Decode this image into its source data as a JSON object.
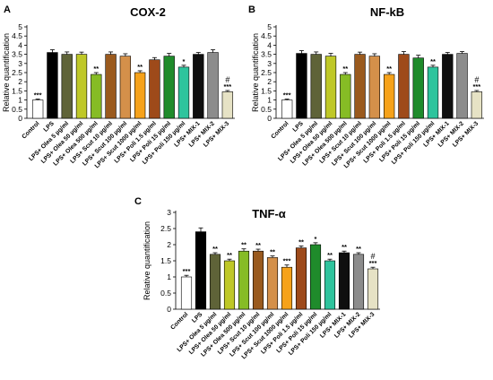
{
  "chart_data": [
    {
      "type": "bar",
      "panel": "A",
      "title": "COX-2",
      "ylabel": "Relative quantification",
      "ylim": [
        0,
        5
      ],
      "yticks": [
        "0",
        "0.5",
        "1",
        "1.5",
        "2",
        "2.5",
        "3",
        "3.5",
        "4",
        "4.5",
        "5"
      ],
      "categories": [
        "Control",
        "LPS",
        "LPS+ Olea 5 µg/ml",
        "LPS+ Olea 50 µg/ml",
        "LPS+ Olea 500 µg/ml",
        "LPS+ Scut 10 µg/ml",
        "LPS+ Scut 100 µg/ml",
        "LPS+ Scut 1000 µg/ml",
        "LPS+ Poli 1.5 µg/ml",
        "LPS+ Poli 15 µg/ml",
        "LPS+ Poli 150 µg/ml",
        "LPS+ MIX-1",
        "LPS+ MIX-2",
        "LPS+ MIX-3"
      ],
      "values": [
        1.0,
        3.6,
        3.5,
        3.5,
        2.4,
        3.5,
        3.4,
        2.5,
        3.2,
        3.4,
        2.8,
        3.5,
        3.6,
        1.45
      ],
      "errors": [
        0.05,
        0.15,
        0.13,
        0.12,
        0.1,
        0.13,
        0.13,
        0.1,
        0.12,
        0.15,
        0.1,
        0.1,
        0.15,
        0.07
      ],
      "annotations": [
        "***",
        "",
        "",
        "",
        "**",
        "",
        "",
        "**",
        "",
        "",
        "*",
        "",
        "",
        "***"
      ],
      "hash": [
        "",
        "",
        "",
        "",
        "",
        "",
        "",
        "",
        "",
        "",
        "",
        "",
        "",
        "#"
      ]
    },
    {
      "type": "bar",
      "panel": "B",
      "title": "NF-kB",
      "ylabel": "Relative quantification",
      "ylim": [
        0,
        5
      ],
      "yticks": [
        "0",
        "0.5",
        "1",
        "1.5",
        "2",
        "2.5",
        "3",
        "3.5",
        "4",
        "4.5",
        "5"
      ],
      "categories": [
        "Control",
        "LPS",
        "LPS+ Olea 5 µg/ml",
        "LPS+ Olea 50 µg/ml",
        "LPS+ Olea 500 µg/ml",
        "LPS+ Scut 10 µg/ml",
        "LPS+ Scut 100 µg/ml",
        "LPS+ Scut 1000 µg/ml",
        "LPS+ Poli 1.5 µg/ml",
        "LPS+ Poli 15 µg/ml",
        "LPS+ Poli 150 µg/ml",
        "LPS+ MIX-1",
        "LPS+ MIX-2",
        "LPS+ MIX-3"
      ],
      "values": [
        1.0,
        3.55,
        3.5,
        3.4,
        2.4,
        3.5,
        3.4,
        2.4,
        3.5,
        3.3,
        2.8,
        3.5,
        3.55,
        1.45
      ],
      "errors": [
        0.05,
        0.15,
        0.13,
        0.15,
        0.1,
        0.12,
        0.13,
        0.1,
        0.15,
        0.15,
        0.1,
        0.1,
        0.1,
        0.07
      ],
      "annotations": [
        "***",
        "",
        "",
        "",
        "**",
        "",
        "",
        "**",
        "",
        "",
        "**",
        "",
        "",
        "***"
      ],
      "hash": [
        "",
        "",
        "",
        "",
        "",
        "",
        "",
        "",
        "",
        "",
        "",
        "",
        "",
        "#"
      ]
    },
    {
      "type": "bar",
      "panel": "C",
      "title": "TNF-α",
      "ylabel": "Relative quantification",
      "ylim": [
        0,
        3
      ],
      "yticks": [
        "0",
        "0.5",
        "1",
        "1.5",
        "2",
        "2.5",
        "3"
      ],
      "categories": [
        "Control",
        "LPS",
        "LPS+ Olea 5 µg/ml",
        "LPS+ Olea 50 µg/ml",
        "LPS+ Olea 500 µg/ml",
        "LPS+ Scut 10 µg/ml",
        "LPS+ Scut 100 µg/ml",
        "LPS+ Scut 1000 µg/ml",
        "LPS+ Poli 1.5 µg/ml",
        "LPS+ Poli 15 µg/ml",
        "LPS+ Poli 150 µg/ml",
        "LPS+ MIX-1",
        "LPS+ MIX-2",
        "LPS+ MIX-3"
      ],
      "values": [
        1.0,
        2.4,
        1.7,
        1.5,
        1.8,
        1.8,
        1.6,
        1.3,
        1.9,
        2.0,
        1.5,
        1.75,
        1.7,
        1.25
      ],
      "errors": [
        0.05,
        0.12,
        0.05,
        0.05,
        0.07,
        0.06,
        0.05,
        0.07,
        0.06,
        0.06,
        0.05,
        0.05,
        0.05,
        0.05
      ],
      "annotations": [
        "***",
        "",
        "**",
        "**",
        "**",
        "**",
        "**",
        "***",
        "**",
        "*",
        "**",
        "**",
        "**",
        "***"
      ],
      "hash": [
        "",
        "",
        "",
        "",
        "",
        "",
        "",
        "",
        "",
        "",
        "",
        "",
        "",
        "#"
      ]
    }
  ],
  "bar_colors": [
    "#ffffff",
    "#000000",
    "#5f6338",
    "#bfc827",
    "#86bc25",
    "#9a5a1e",
    "#d4904a",
    "#f6a21a",
    "#9e4a1a",
    "#1f8b2b",
    "#2ec49d",
    "#0f0f0f",
    "#8c8c8c",
    "#e6e2c5"
  ]
}
